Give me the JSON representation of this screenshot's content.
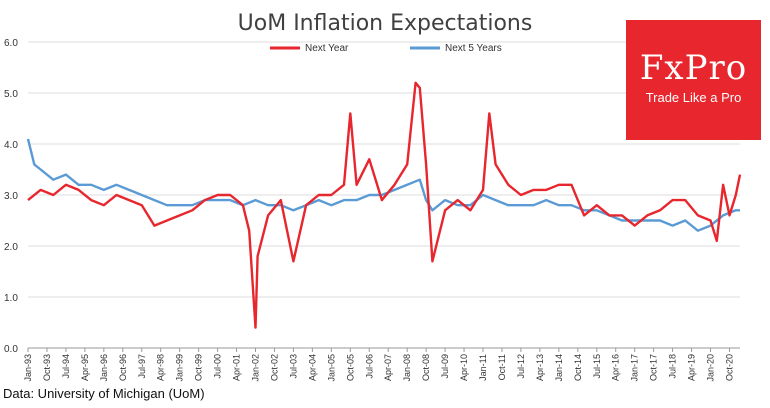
{
  "logo": {
    "name": "FxPro",
    "tagline": "Trade Like a Pro"
  },
  "source": "Data: University of Michigan (UoM)",
  "colors": {
    "next_year": "#e8262d",
    "next_5_years": "#5b9bd5",
    "grid": "#dcdcdc",
    "axis": "#999999"
  },
  "chart_data": {
    "type": "line",
    "title": "UoM Inflation Expectations",
    "ylim": [
      0,
      6
    ],
    "yticks": [
      "0.0",
      "1.0",
      "2.0",
      "3.0",
      "4.0",
      "5.0",
      "6.0"
    ],
    "xticks": [
      "Jan-93",
      "Oct-93",
      "Jul-94",
      "Apr-95",
      "Jan-96",
      "Oct-96",
      "Jul-97",
      "Apr-98",
      "Jan-99",
      "Oct-99",
      "Jul-00",
      "Apr-01",
      "Jan-02",
      "Oct-02",
      "Jul-03",
      "Apr-04",
      "Jan-05",
      "Oct-05",
      "Jul-06",
      "Apr-07",
      "Jan-08",
      "Oct-08",
      "Jul-09",
      "Apr-10",
      "Jan-11",
      "Oct-11",
      "Jul-12",
      "Apr-13",
      "Jan-14",
      "Oct-14",
      "Jul-15",
      "Apr-16",
      "Jan-17",
      "Oct-17",
      "Jul-18",
      "Apr-19",
      "Jan-20",
      "Oct-20"
    ],
    "x_start": "Jan-93",
    "x_end": "Mar-21",
    "grid": true,
    "legend_position": "top",
    "series": [
      {
        "name": "Next Year",
        "points": [
          [
            "Jan-93",
            2.9
          ],
          [
            "Jul-93",
            3.1
          ],
          [
            "Jan-94",
            3.0
          ],
          [
            "Jul-94",
            3.2
          ],
          [
            "Jan-95",
            3.1
          ],
          [
            "Jul-95",
            2.9
          ],
          [
            "Jan-96",
            2.8
          ],
          [
            "Jul-96",
            3.0
          ],
          [
            "Jan-97",
            2.9
          ],
          [
            "Jul-97",
            2.8
          ],
          [
            "Jan-98",
            2.4
          ],
          [
            "Jul-98",
            2.5
          ],
          [
            "Jan-99",
            2.6
          ],
          [
            "Jul-99",
            2.7
          ],
          [
            "Jan-00",
            2.9
          ],
          [
            "Jul-00",
            3.0
          ],
          [
            "Jan-01",
            3.0
          ],
          [
            "Jul-01",
            2.8
          ],
          [
            "Oct-01",
            2.3
          ],
          [
            "Jan-02",
            0.4
          ],
          [
            "Feb-02",
            1.8
          ],
          [
            "Jul-02",
            2.6
          ],
          [
            "Jan-03",
            2.9
          ],
          [
            "Jul-03",
            1.7
          ],
          [
            "Jan-04",
            2.8
          ],
          [
            "Jul-04",
            3.0
          ],
          [
            "Jan-05",
            3.0
          ],
          [
            "Jul-05",
            3.2
          ],
          [
            "Oct-05",
            4.6
          ],
          [
            "Jan-06",
            3.2
          ],
          [
            "Jul-06",
            3.7
          ],
          [
            "Jan-07",
            2.9
          ],
          [
            "Jul-07",
            3.2
          ],
          [
            "Jan-08",
            3.6
          ],
          [
            "May-08",
            5.2
          ],
          [
            "Jul-08",
            5.1
          ],
          [
            "Oct-08",
            3.6
          ],
          [
            "Jan-09",
            1.7
          ],
          [
            "Jul-09",
            2.7
          ],
          [
            "Jan-10",
            2.9
          ],
          [
            "Jul-10",
            2.7
          ],
          [
            "Jan-11",
            3.1
          ],
          [
            "Apr-11",
            4.6
          ],
          [
            "Jul-11",
            3.6
          ],
          [
            "Jan-12",
            3.2
          ],
          [
            "Jul-12",
            3.0
          ],
          [
            "Jan-13",
            3.1
          ],
          [
            "Jul-13",
            3.1
          ],
          [
            "Jan-14",
            3.2
          ],
          [
            "Jul-14",
            3.2
          ],
          [
            "Jan-15",
            2.6
          ],
          [
            "Jul-15",
            2.8
          ],
          [
            "Jan-16",
            2.6
          ],
          [
            "Jul-16",
            2.6
          ],
          [
            "Jan-17",
            2.4
          ],
          [
            "Jul-17",
            2.6
          ],
          [
            "Jan-18",
            2.7
          ],
          [
            "Jul-18",
            2.9
          ],
          [
            "Jan-19",
            2.9
          ],
          [
            "Jul-19",
            2.6
          ],
          [
            "Jan-20",
            2.5
          ],
          [
            "Apr-20",
            2.1
          ],
          [
            "Jul-20",
            3.2
          ],
          [
            "Oct-20",
            2.6
          ],
          [
            "Jan-21",
            3.0
          ],
          [
            "Mar-21",
            3.4
          ]
        ]
      },
      {
        "name": "Next 5 Years",
        "points": [
          [
            "Jan-93",
            4.1
          ],
          [
            "Apr-93",
            3.6
          ],
          [
            "Jul-93",
            3.5
          ],
          [
            "Jan-94",
            3.3
          ],
          [
            "Jul-94",
            3.4
          ],
          [
            "Jan-95",
            3.2
          ],
          [
            "Jul-95",
            3.2
          ],
          [
            "Jan-96",
            3.1
          ],
          [
            "Jul-96",
            3.2
          ],
          [
            "Jan-97",
            3.1
          ],
          [
            "Jul-97",
            3.0
          ],
          [
            "Jan-98",
            2.9
          ],
          [
            "Jul-98",
            2.8
          ],
          [
            "Jan-99",
            2.8
          ],
          [
            "Jul-99",
            2.8
          ],
          [
            "Jan-00",
            2.9
          ],
          [
            "Jul-00",
            2.9
          ],
          [
            "Jan-01",
            2.9
          ],
          [
            "Jul-01",
            2.8
          ],
          [
            "Jan-02",
            2.9
          ],
          [
            "Jul-02",
            2.8
          ],
          [
            "Jan-03",
            2.8
          ],
          [
            "Jul-03",
            2.7
          ],
          [
            "Jan-04",
            2.8
          ],
          [
            "Jul-04",
            2.9
          ],
          [
            "Jan-05",
            2.8
          ],
          [
            "Jul-05",
            2.9
          ],
          [
            "Jan-06",
            2.9
          ],
          [
            "Jul-06",
            3.0
          ],
          [
            "Jan-07",
            3.0
          ],
          [
            "Jul-07",
            3.1
          ],
          [
            "Jan-08",
            3.2
          ],
          [
            "Jul-08",
            3.3
          ],
          [
            "Oct-08",
            2.9
          ],
          [
            "Jan-09",
            2.7
          ],
          [
            "Jul-09",
            2.9
          ],
          [
            "Jan-10",
            2.8
          ],
          [
            "Jul-10",
            2.8
          ],
          [
            "Jan-11",
            3.0
          ],
          [
            "Jul-11",
            2.9
          ],
          [
            "Jan-12",
            2.8
          ],
          [
            "Jul-12",
            2.8
          ],
          [
            "Jan-13",
            2.8
          ],
          [
            "Jul-13",
            2.9
          ],
          [
            "Jan-14",
            2.8
          ],
          [
            "Jul-14",
            2.8
          ],
          [
            "Jan-15",
            2.7
          ],
          [
            "Jul-15",
            2.7
          ],
          [
            "Jan-16",
            2.6
          ],
          [
            "Jul-16",
            2.5
          ],
          [
            "Jan-17",
            2.5
          ],
          [
            "Jul-17",
            2.5
          ],
          [
            "Jan-18",
            2.5
          ],
          [
            "Jul-18",
            2.4
          ],
          [
            "Jan-19",
            2.5
          ],
          [
            "Jul-19",
            2.3
          ],
          [
            "Jan-20",
            2.4
          ],
          [
            "Jul-20",
            2.6
          ],
          [
            "Jan-21",
            2.7
          ],
          [
            "Mar-21",
            2.7
          ]
        ]
      }
    ]
  }
}
